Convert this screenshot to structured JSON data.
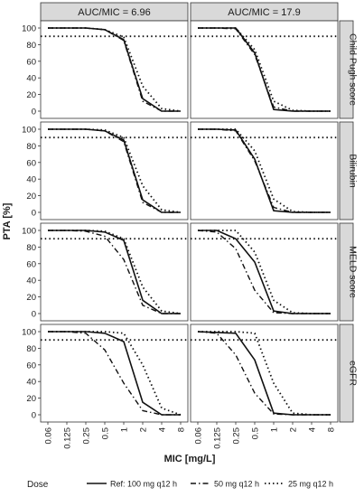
{
  "chart_data": {
    "type": "line",
    "layout": "faceted-grid",
    "ylabel": "PTA [%]",
    "xlabel": "MIC [mg/L]",
    "x_ticks": [
      "0.06",
      "0.125",
      "0.25",
      "0.5",
      "1",
      "2",
      "4",
      "8"
    ],
    "y_ticks": [
      "0",
      "20",
      "40",
      "60",
      "80",
      "100"
    ],
    "ylim": [
      0,
      100
    ],
    "target_line": 90,
    "grid": false,
    "columns": [
      "AUC/MIC = 6.96",
      "AUC/MIC = 17.9"
    ],
    "rows": [
      "Child Pugh score",
      "Bilirubin",
      "MELD score",
      "eGFR"
    ],
    "legend": {
      "title": "Dose",
      "position": "bottom",
      "entries": [
        {
          "label": "Ref: 100 mg q12 h",
          "style": "solid"
        },
        {
          "label": "50 mg q12 h",
          "style": "dashdot"
        },
        {
          "label": "25 mg q12 h",
          "style": "dotted"
        }
      ]
    },
    "panels": [
      {
        "row": 0,
        "col": 0,
        "series": [
          {
            "style": "solid",
            "values": [
              100,
              100,
              100,
              98,
              86,
              15,
              0,
              0
            ]
          },
          {
            "style": "dashdot",
            "values": [
              100,
              100,
              100,
              98,
              85,
              12,
              0,
              0
            ]
          },
          {
            "style": "dotted",
            "values": [
              100,
              100,
              100,
              98,
              89,
              30,
              3,
              0
            ]
          }
        ]
      },
      {
        "row": 0,
        "col": 1,
        "series": [
          {
            "style": "solid",
            "values": [
              100,
              100,
              100,
              70,
              2,
              0,
              0,
              0
            ]
          },
          {
            "style": "dashdot",
            "values": [
              100,
              100,
              99,
              68,
              5,
              0,
              0,
              0
            ]
          },
          {
            "style": "dotted",
            "values": [
              100,
              100,
              100,
              74,
              12,
              1,
              0,
              0
            ]
          }
        ]
      },
      {
        "row": 1,
        "col": 0,
        "series": [
          {
            "style": "solid",
            "values": [
              100,
              100,
              100,
              98,
              87,
              15,
              0,
              0
            ]
          },
          {
            "style": "dashdot",
            "values": [
              100,
              100,
              100,
              98,
              85,
              12,
              0,
              0
            ]
          },
          {
            "style": "dotted",
            "values": [
              100,
              100,
              100,
              99,
              90,
              32,
              3,
              0
            ]
          }
        ]
      },
      {
        "row": 1,
        "col": 1,
        "series": [
          {
            "style": "solid",
            "values": [
              100,
              100,
              99,
              64,
              2,
              0,
              0,
              0
            ]
          },
          {
            "style": "dashdot",
            "values": [
              100,
              100,
              98,
              62,
              6,
              0,
              0,
              0
            ]
          },
          {
            "style": "dotted",
            "values": [
              100,
              100,
              100,
              74,
              16,
              1,
              0,
              0
            ]
          }
        ]
      },
      {
        "row": 2,
        "col": 0,
        "series": [
          {
            "style": "solid",
            "values": [
              100,
              100,
              100,
              98,
              88,
              16,
              0,
              0
            ]
          },
          {
            "style": "dashdot",
            "values": [
              100,
              100,
              99,
              93,
              65,
              10,
              0,
              0
            ]
          },
          {
            "style": "dotted",
            "values": [
              100,
              100,
              100,
              99,
              90,
              32,
              3,
              0
            ]
          }
        ]
      },
      {
        "row": 2,
        "col": 1,
        "series": [
          {
            "style": "solid",
            "values": [
              100,
              100,
              90,
              62,
              3,
              0,
              0,
              0
            ]
          },
          {
            "style": "dashdot",
            "values": [
              100,
              98,
              78,
              28,
              1,
              0,
              0,
              0
            ]
          },
          {
            "style": "dotted",
            "values": [
              100,
              100,
              100,
              74,
              16,
              1,
              0,
              0
            ]
          }
        ]
      },
      {
        "row": 3,
        "col": 0,
        "series": [
          {
            "style": "solid",
            "values": [
              100,
              100,
              100,
              98,
              88,
              15,
              0,
              0
            ]
          },
          {
            "style": "dashdot",
            "values": [
              100,
              100,
              98,
              78,
              38,
              5,
              0,
              0
            ]
          },
          {
            "style": "dotted",
            "values": [
              100,
              100,
              100,
              100,
              98,
              60,
              8,
              0
            ]
          }
        ]
      },
      {
        "row": 3,
        "col": 1,
        "series": [
          {
            "style": "solid",
            "values": [
              100,
              99,
              98,
              66,
              2,
              0,
              0,
              0
            ]
          },
          {
            "style": "dashdot",
            "values": [
              100,
              98,
              72,
              26,
              1,
              0,
              0,
              0
            ]
          },
          {
            "style": "dotted",
            "values": [
              100,
              100,
              100,
              98,
              38,
              2,
              0,
              0
            ]
          }
        ]
      }
    ]
  }
}
